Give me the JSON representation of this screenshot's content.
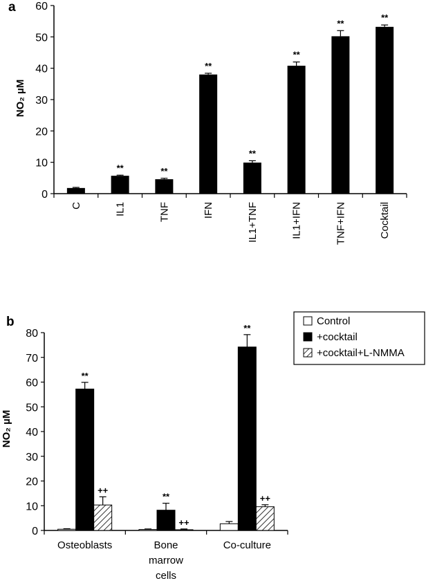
{
  "chart_data": [
    {
      "panel": "a",
      "type": "bar",
      "ylabel": "NO₂ µM",
      "ylim": [
        0,
        60
      ],
      "yticks": [
        0,
        10,
        20,
        30,
        40,
        50,
        60
      ],
      "categories": [
        "C",
        "IL1",
        "TNF",
        "IFN",
        "IL1+TNF",
        "IL1+IFN",
        "TNF+IFN",
        "Cocktail"
      ],
      "values": [
        1.8,
        5.7,
        4.6,
        38.0,
        9.9,
        40.8,
        50.2,
        53.2
      ],
      "errors": [
        0.2,
        0.2,
        0.3,
        0.4,
        0.6,
        1.2,
        1.8,
        0.6
      ],
      "annotations": [
        "",
        "**",
        "**",
        "**",
        "**",
        "**",
        "**",
        "**"
      ],
      "colors": {
        "bar": "#000000"
      }
    },
    {
      "panel": "b",
      "type": "bar",
      "ylabel": "NO₂ µM",
      "ylim": [
        0,
        80
      ],
      "yticks": [
        0,
        10,
        20,
        30,
        40,
        50,
        60,
        70,
        80
      ],
      "categories": [
        "Osteoblasts",
        "Bone marrow cells",
        "Co-culture"
      ],
      "category_lines": [
        [
          "Osteoblasts"
        ],
        [
          "Bone",
          "marrow",
          "cells"
        ],
        [
          "Co-culture"
        ]
      ],
      "legend_position": "top-right",
      "series": [
        {
          "name": "Control",
          "fill": "white",
          "values": [
            0.5,
            0.4,
            2.7
          ],
          "errors": [
            0.2,
            0.2,
            0.9
          ],
          "annotations": [
            "",
            "",
            ""
          ]
        },
        {
          "name": "+cocktail",
          "fill": "black",
          "values": [
            57.2,
            8.2,
            74.2
          ],
          "errors": [
            2.7,
            2.8,
            5.0
          ],
          "annotations": [
            "**",
            "**",
            "**"
          ]
        },
        {
          "name": "+cocktail+L-NMMA",
          "fill": "hatch",
          "values": [
            10.3,
            0.3,
            9.6
          ],
          "errors": [
            3.3,
            0.3,
            0.8
          ],
          "annotations": [
            "++",
            "++",
            "++"
          ]
        }
      ]
    }
  ]
}
